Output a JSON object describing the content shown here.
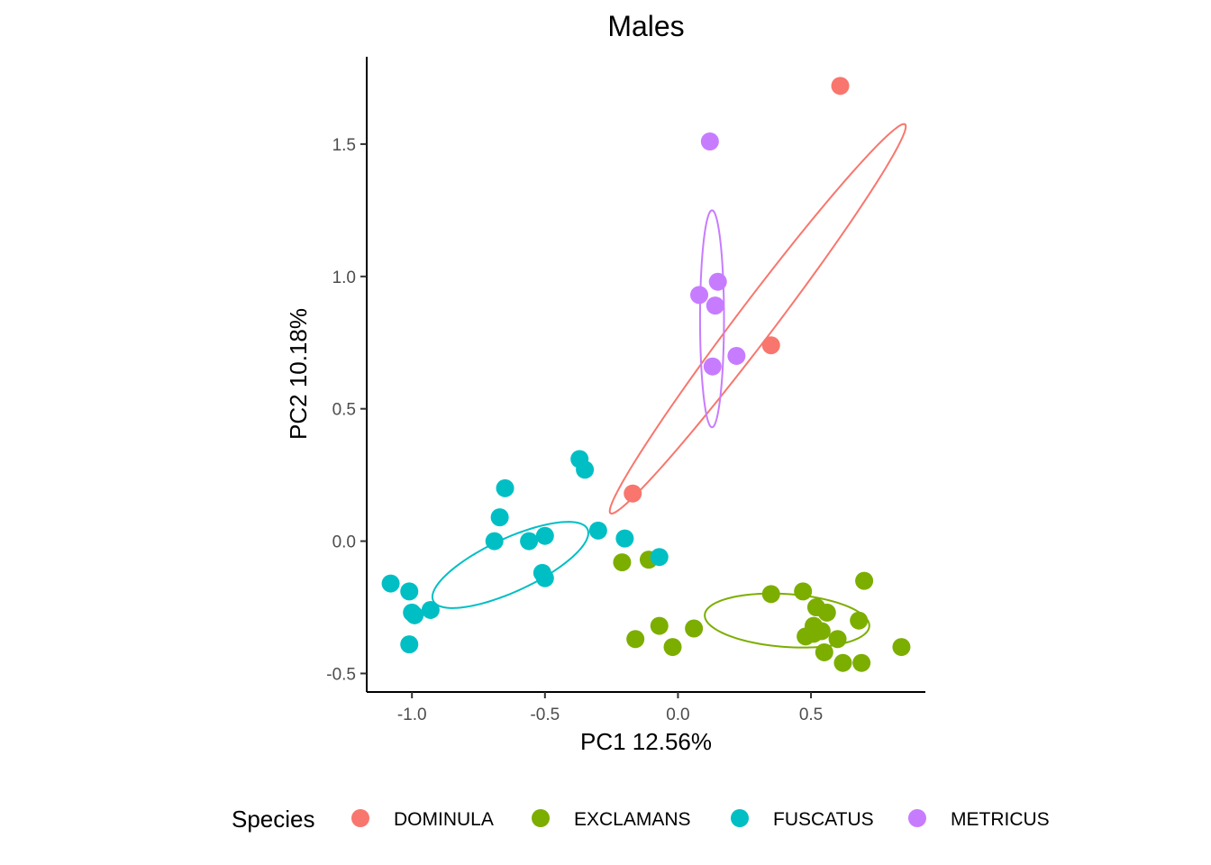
{
  "chart_data": {
    "type": "scatter",
    "title": "Males",
    "xlabel": "PC1 12.56%",
    "ylabel": "PC2 10.18%",
    "xlim": [
      -1.17,
      0.93
    ],
    "ylim": [
      -0.57,
      1.83
    ],
    "xticks": [
      -1.0,
      -0.5,
      0.0,
      0.5
    ],
    "xtick_labels": [
      "-1.0",
      "-0.5",
      "0.0",
      "0.5"
    ],
    "yticks": [
      -0.5,
      0.0,
      0.5,
      1.0,
      1.5
    ],
    "ytick_labels": [
      "-0.5",
      "0.0",
      "0.5",
      "1.0",
      "1.5"
    ],
    "grid": false,
    "legend": {
      "title": "Species",
      "position": "bottom"
    },
    "series": [
      {
        "name": "DOMINULA",
        "color": "#F8766D",
        "points": [
          [
            0.61,
            1.72
          ],
          [
            0.35,
            0.74
          ],
          [
            -0.17,
            0.18
          ]
        ],
        "ellipse": {
          "cx": 0.3,
          "cy": 0.84,
          "rx": 0.92,
          "ry": 0.07,
          "angle_deg": 53
        }
      },
      {
        "name": "EXCLAMANS",
        "color": "#7CAE00",
        "points": [
          [
            -0.21,
            -0.08
          ],
          [
            -0.11,
            -0.07
          ],
          [
            -0.16,
            -0.37
          ],
          [
            -0.07,
            -0.32
          ],
          [
            -0.02,
            -0.4
          ],
          [
            0.06,
            -0.33
          ],
          [
            0.35,
            -0.2
          ],
          [
            0.47,
            -0.19
          ],
          [
            0.52,
            -0.25
          ],
          [
            0.56,
            -0.27
          ],
          [
            0.7,
            -0.15
          ],
          [
            0.68,
            -0.3
          ],
          [
            0.51,
            -0.32
          ],
          [
            0.54,
            -0.34
          ],
          [
            0.48,
            -0.36
          ],
          [
            0.51,
            -0.35
          ],
          [
            0.6,
            -0.37
          ],
          [
            0.55,
            -0.42
          ],
          [
            0.62,
            -0.46
          ],
          [
            0.69,
            -0.46
          ],
          [
            0.84,
            -0.4
          ]
        ],
        "ellipse": {
          "cx": 0.41,
          "cy": -0.3,
          "rx": 0.31,
          "ry": 0.1,
          "angle_deg": -4
        }
      },
      {
        "name": "FUSCATUS",
        "color": "#00BFC4",
        "points": [
          [
            -0.37,
            0.31
          ],
          [
            -0.35,
            0.27
          ],
          [
            -0.65,
            0.2
          ],
          [
            -0.67,
            0.09
          ],
          [
            -0.69,
            0.0
          ],
          [
            -0.56,
            0.0
          ],
          [
            -0.5,
            0.02
          ],
          [
            -0.3,
            0.04
          ],
          [
            -0.2,
            0.01
          ],
          [
            -0.07,
            -0.06
          ],
          [
            -0.51,
            -0.12
          ],
          [
            -0.5,
            -0.14
          ],
          [
            -1.08,
            -0.16
          ],
          [
            -1.01,
            -0.19
          ],
          [
            -1.0,
            -0.27
          ],
          [
            -0.99,
            -0.28
          ],
          [
            -0.93,
            -0.26
          ],
          [
            -1.01,
            -0.39
          ]
        ],
        "ellipse": {
          "cx": -0.63,
          "cy": -0.09,
          "rx": 0.32,
          "ry": 0.1,
          "angle_deg": 25
        }
      },
      {
        "name": "METRICUS",
        "color": "#C77CFF",
        "points": [
          [
            0.12,
            1.51
          ],
          [
            0.15,
            0.98
          ],
          [
            0.08,
            0.93
          ],
          [
            0.14,
            0.89
          ],
          [
            0.22,
            0.7
          ],
          [
            0.13,
            0.66
          ]
        ],
        "ellipse": {
          "cx": 0.128,
          "cy": 0.84,
          "rx": 0.41,
          "ry": 0.045,
          "angle_deg": 90
        }
      }
    ]
  }
}
